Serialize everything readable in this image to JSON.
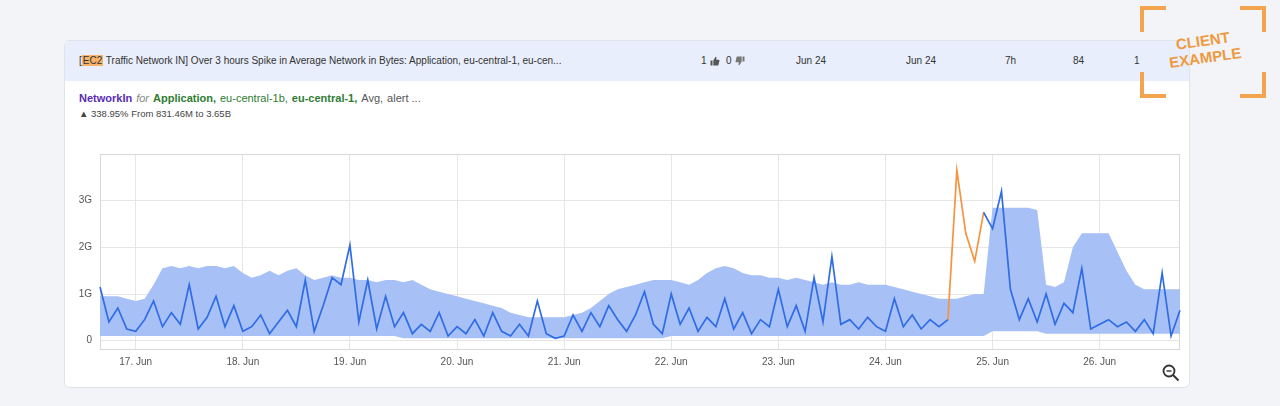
{
  "header": {
    "title": {
      "before": "[",
      "highlighted": "EC2",
      "after": " Traffic Network IN] Over 3 hours Spike in Average Network in Bytes: Application, eu-central-1, eu-cen..."
    },
    "likes": 1,
    "dislikes": 0,
    "columns": [
      "Jun 24",
      "Jun 24",
      "7h",
      84,
      1
    ]
  },
  "badge": [
    "CLIENT",
    "EXAMPLE"
  ],
  "chart_data": {
    "type": "line",
    "title": [
      "NetworkIn",
      "for",
      "Application,",
      "eu-central-1b,",
      "eu-central-1,",
      "Avg,",
      "alert ..."
    ],
    "subtitle": "▲ 338.95% From 831.46M to 3.65B",
    "categories": [
      null,
      null,
      null,
      null,
      "17. Jun",
      null,
      null,
      null,
      null,
      null,
      null,
      null,
      null,
      null,
      null,
      null,
      "18. Jun",
      null,
      null,
      null,
      null,
      null,
      null,
      null,
      null,
      null,
      null,
      null,
      "19. Jun",
      null,
      null,
      null,
      null,
      null,
      null,
      null,
      null,
      null,
      null,
      null,
      "20. Jun",
      null,
      null,
      null,
      null,
      null,
      null,
      null,
      null,
      null,
      null,
      null,
      "21. Jun",
      null,
      null,
      null,
      null,
      null,
      null,
      null,
      null,
      null,
      null,
      null,
      "22. Jun",
      null,
      null,
      null,
      null,
      null,
      null,
      null,
      null,
      null,
      null,
      null,
      "23. Jun",
      null,
      null,
      null,
      null,
      null,
      null,
      null,
      null,
      null,
      null,
      null,
      "24. Jun",
      null,
      null,
      null,
      null,
      null,
      null,
      null,
      null,
      null,
      null,
      null,
      "25. Jun",
      null,
      null,
      null,
      null,
      null,
      null,
      null,
      null,
      null,
      null,
      null,
      "26. Jun",
      null,
      null,
      null,
      null,
      null,
      null,
      null,
      null,
      null
    ],
    "series": [
      {
        "type": "band",
        "color": "#a7c0f5",
        "lower": [
          0.1,
          0.1,
          0.1,
          0.1,
          0.1,
          0.1,
          0.1,
          0.1,
          0.1,
          0.1,
          0.1,
          0.1,
          0.1,
          0.1,
          0.1,
          0.1,
          0.1,
          0.1,
          0.1,
          0.1,
          0.1,
          0.1,
          0.1,
          0.1,
          0.1,
          0.1,
          0.1,
          0.1,
          0.1,
          0.1,
          0.1,
          0.1,
          0.1,
          0.1,
          0.05,
          0.05,
          0.05,
          0.05,
          0.05,
          0.05,
          0.05,
          0.05,
          0.05,
          0.05,
          0.05,
          0.05,
          0.05,
          0.05,
          0.05,
          0.05,
          0.05,
          0.05,
          0.05,
          0.05,
          0.05,
          0.05,
          0.05,
          0.05,
          0.05,
          0.05,
          0.05,
          0.05,
          0.05,
          0.05,
          0.1,
          0.1,
          0.1,
          0.1,
          0.1,
          0.1,
          0.1,
          0.1,
          0.1,
          0.1,
          0.1,
          0.1,
          0.1,
          0.1,
          0.1,
          0.1,
          0.1,
          0.1,
          0.1,
          0.1,
          0.1,
          0.1,
          0.1,
          0.1,
          0.1,
          0.1,
          0.1,
          0.1,
          0.1,
          0.1,
          0.1,
          0.1,
          0.1,
          0.1,
          0.1,
          0.1,
          0.2,
          0.2,
          0.2,
          0.2,
          0.2,
          0.2,
          0.15,
          0.15,
          0.15,
          0.15,
          0.15,
          0.15,
          0.15,
          0.15,
          0.15,
          0.15,
          0.15,
          0.15,
          0.15,
          0.15,
          0.15,
          0.15
        ],
        "upper": [
          0.95,
          0.95,
          0.95,
          0.9,
          0.85,
          0.9,
          1.2,
          1.55,
          1.6,
          1.55,
          1.6,
          1.55,
          1.6,
          1.6,
          1.55,
          1.6,
          1.45,
          1.35,
          1.4,
          1.5,
          1.4,
          1.5,
          1.55,
          1.4,
          1.3,
          1.35,
          1.4,
          1.35,
          1.35,
          1.3,
          1.3,
          1.25,
          1.3,
          1.3,
          1.25,
          1.3,
          1.2,
          1.1,
          1.05,
          1.0,
          0.95,
          0.9,
          0.85,
          0.8,
          0.75,
          0.7,
          0.6,
          0.55,
          0.5,
          0.5,
          0.5,
          0.5,
          0.5,
          0.55,
          0.6,
          0.7,
          0.85,
          1.0,
          1.1,
          1.15,
          1.2,
          1.25,
          1.3,
          1.3,
          1.3,
          1.25,
          1.2,
          1.3,
          1.45,
          1.55,
          1.6,
          1.55,
          1.45,
          1.4,
          1.4,
          1.35,
          1.35,
          1.3,
          1.35,
          1.3,
          1.25,
          1.2,
          1.25,
          1.2,
          1.2,
          1.25,
          1.2,
          1.2,
          1.2,
          1.15,
          1.1,
          1.05,
          1.0,
          0.95,
          0.9,
          0.9,
          0.9,
          0.95,
          1.0,
          1.0,
          2.85,
          2.85,
          2.85,
          2.85,
          2.85,
          2.8,
          1.2,
          1.15,
          1.25,
          2.0,
          2.3,
          2.3,
          2.3,
          2.3,
          1.9,
          1.5,
          1.2,
          1.1,
          1.1,
          1.1,
          1.1,
          1.1
        ]
      },
      {
        "type": "line",
        "color": "#2f6ce5",
        "values": [
          1.15,
          0.4,
          0.7,
          0.25,
          0.2,
          0.45,
          0.85,
          0.3,
          0.6,
          0.35,
          1.2,
          0.25,
          0.5,
          0.95,
          0.3,
          0.75,
          0.2,
          0.3,
          0.55,
          0.15,
          0.4,
          0.65,
          0.3,
          1.3,
          0.2,
          0.75,
          1.35,
          1.2,
          2.05,
          0.4,
          1.3,
          0.25,
          0.95,
          0.3,
          0.6,
          0.15,
          0.35,
          0.2,
          0.6,
          0.1,
          0.3,
          0.15,
          0.45,
          0.1,
          0.6,
          0.2,
          0.1,
          0.35,
          0.1,
          0.85,
          0.15,
          0.05,
          0.1,
          0.55,
          0.2,
          0.6,
          0.3,
          0.75,
          0.45,
          0.2,
          0.55,
          1.05,
          0.35,
          0.15,
          1.0,
          0.35,
          0.7,
          0.2,
          0.5,
          0.3,
          0.9,
          0.25,
          0.6,
          0.15,
          0.45,
          0.3,
          1.1,
          0.3,
          0.75,
          0.2,
          1.35,
          0.4,
          1.8,
          0.35,
          0.45,
          0.25,
          0.5,
          0.3,
          0.2,
          0.9,
          0.3,
          0.55,
          0.25,
          0.45,
          0.3,
          0.45,
          null,
          null,
          null,
          2.75,
          2.4,
          3.2,
          1.1,
          0.45,
          0.9,
          0.4,
          1.0,
          0.35,
          0.8,
          0.6,
          1.55,
          0.25,
          0.35,
          0.45,
          0.3,
          0.4,
          0.2,
          0.45,
          0.15,
          1.45,
          0.1,
          0.65
        ]
      },
      {
        "type": "line",
        "color": "#f7933f",
        "values": [
          null,
          null,
          null,
          null,
          null,
          null,
          null,
          null,
          null,
          null,
          null,
          null,
          null,
          null,
          null,
          null,
          null,
          null,
          null,
          null,
          null,
          null,
          null,
          null,
          null,
          null,
          null,
          null,
          null,
          null,
          null,
          null,
          null,
          null,
          null,
          null,
          null,
          null,
          null,
          null,
          null,
          null,
          null,
          null,
          null,
          null,
          null,
          null,
          null,
          null,
          null,
          null,
          null,
          null,
          null,
          null,
          null,
          null,
          null,
          null,
          null,
          null,
          null,
          null,
          null,
          null,
          null,
          null,
          null,
          null,
          null,
          null,
          null,
          null,
          null,
          null,
          null,
          null,
          null,
          null,
          null,
          null,
          null,
          null,
          null,
          null,
          null,
          null,
          null,
          null,
          null,
          null,
          null,
          null,
          null,
          0.45,
          3.65,
          2.3,
          1.7,
          2.75,
          null,
          null,
          null,
          null,
          null,
          null,
          null,
          null,
          null,
          null,
          null,
          null,
          null,
          null,
          null,
          null,
          null,
          null,
          null,
          null,
          null,
          null
        ]
      }
    ],
    "ylim": [
      -0.2,
      4
    ],
    "yticks": [
      0,
      {
        "value": 1,
        "label": "1G"
      },
      {
        "value": 2,
        "label": "2G"
      },
      {
        "value": 3,
        "label": "3G"
      }
    ],
    "grid": true
  }
}
